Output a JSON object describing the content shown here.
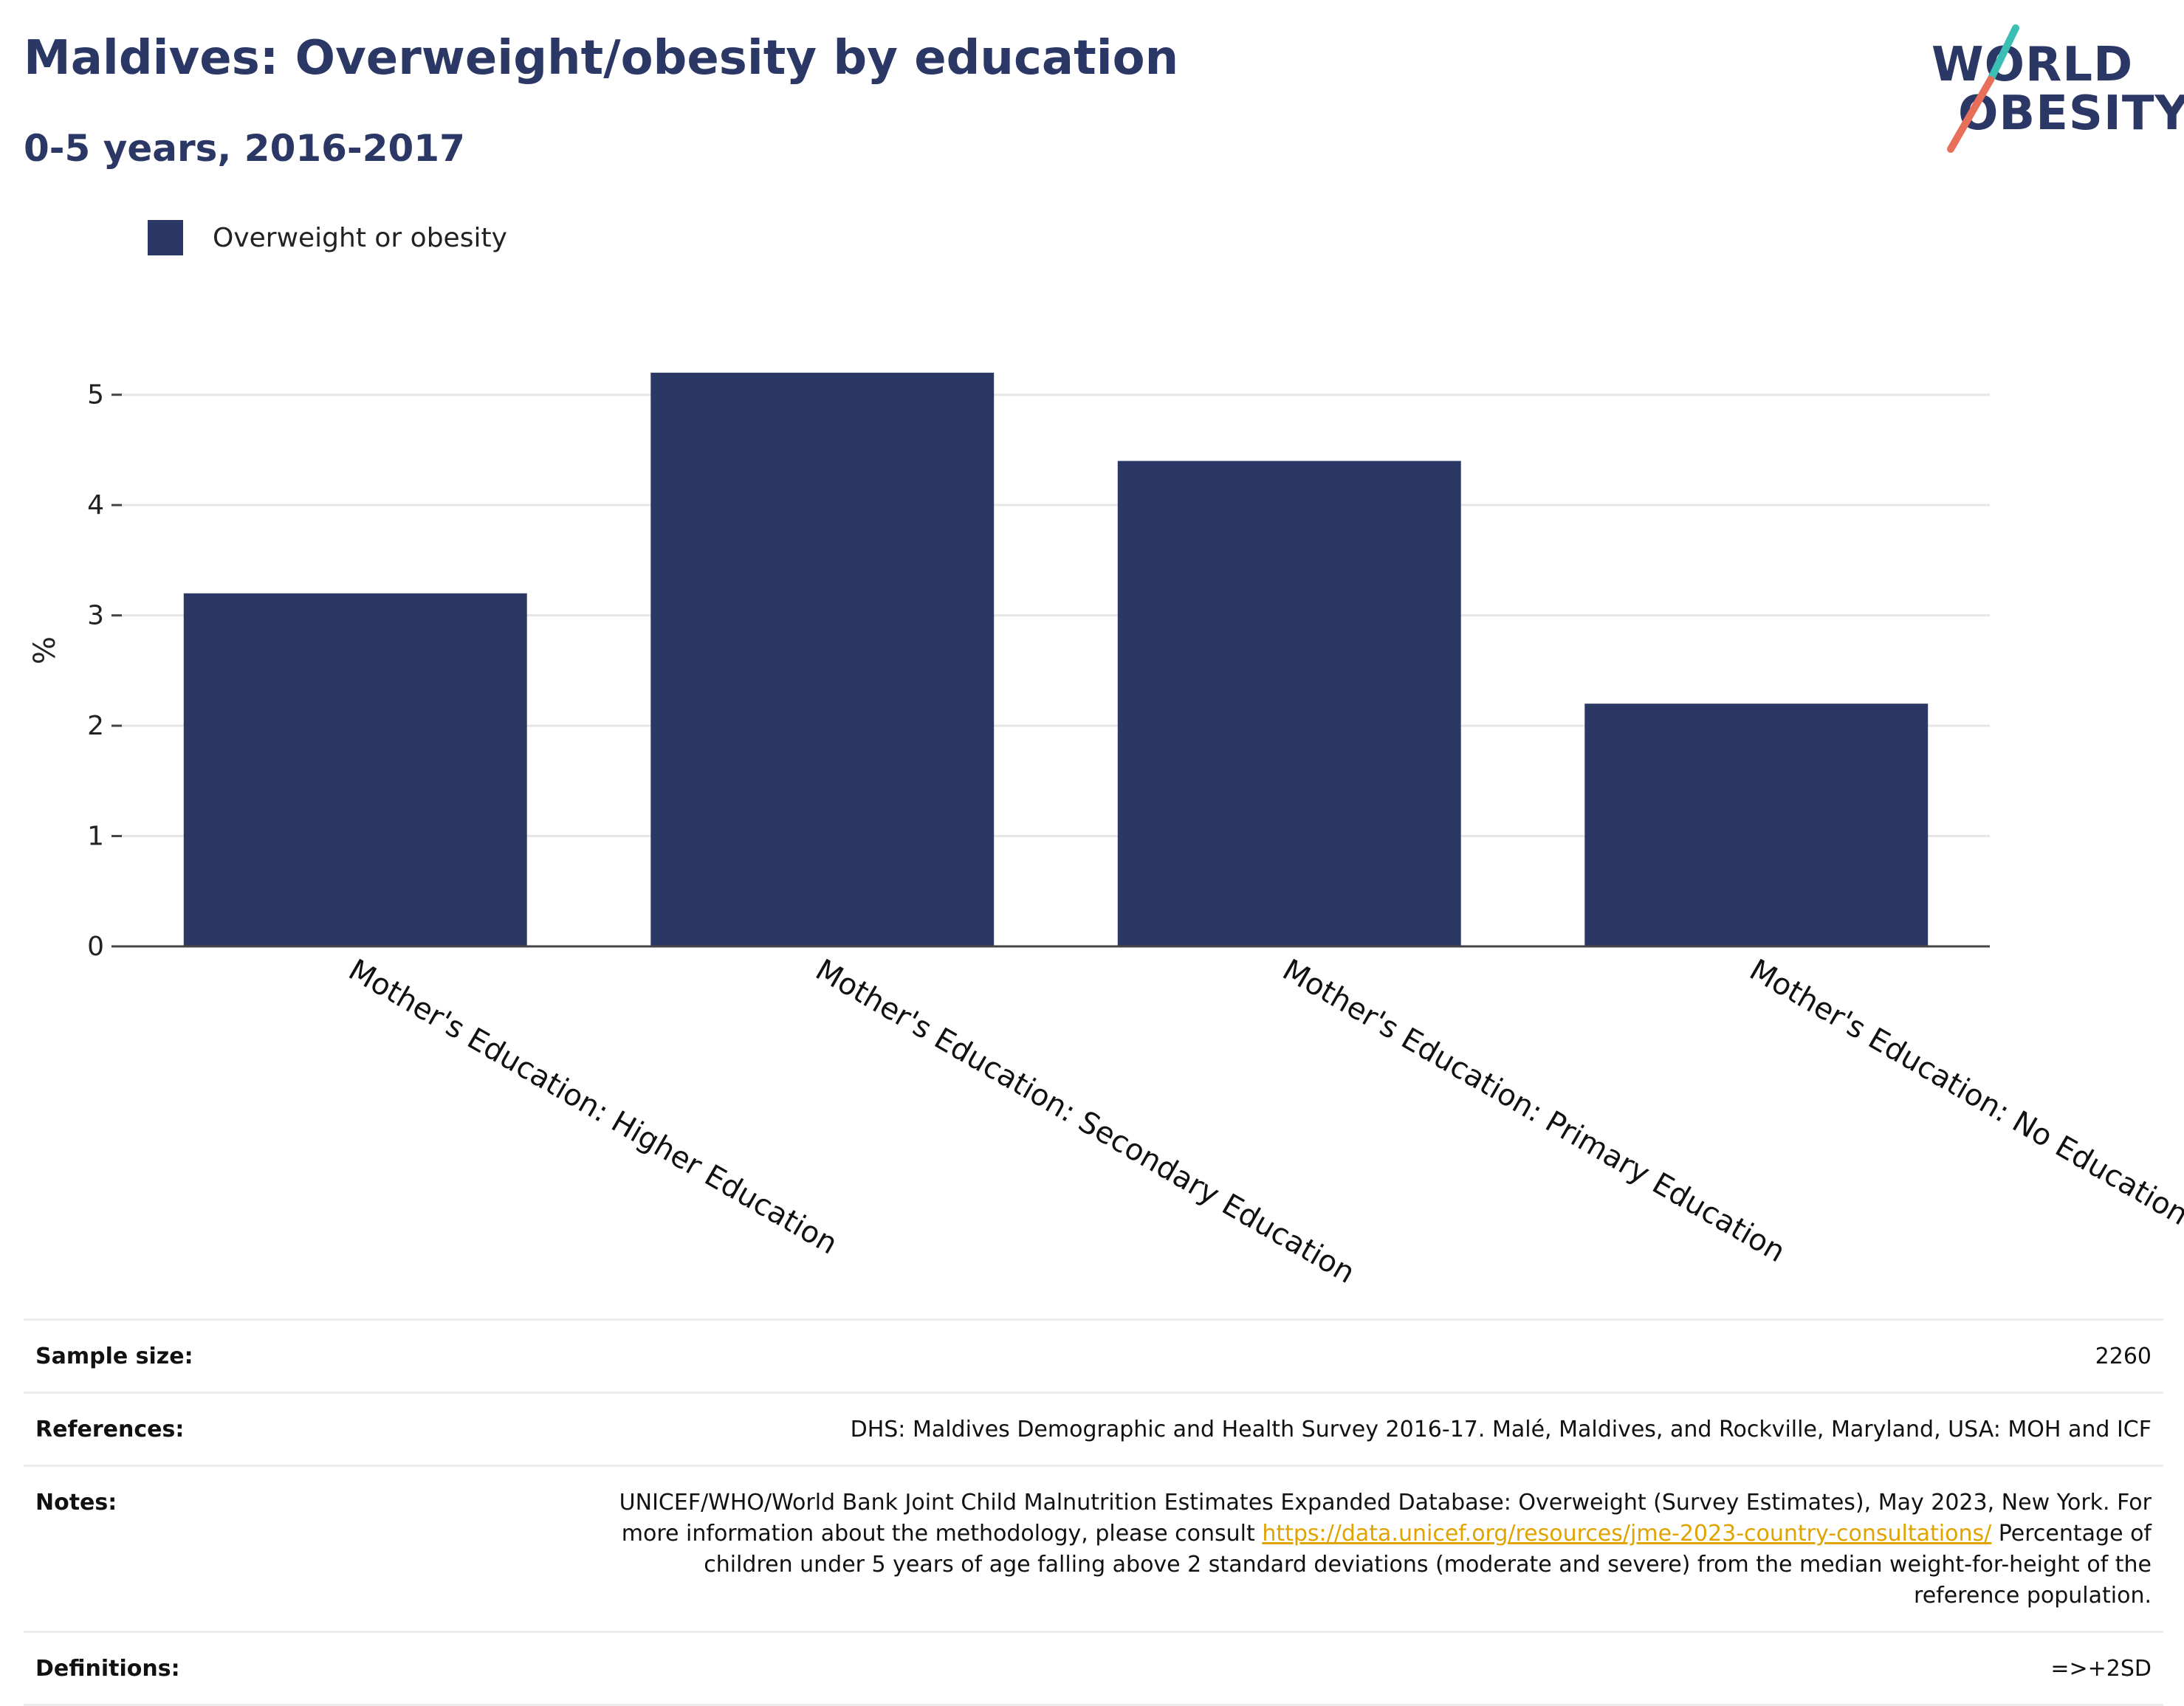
{
  "header": {
    "title": "Maldives: Overweight/obesity by education",
    "subtitle": "0-5 years, 2016-2017"
  },
  "logo": {
    "line1": "WORLD",
    "line2": "OBESITY",
    "colors": {
      "text": "#2b3764",
      "slash_top": "#3bbfb5",
      "slash_bottom": "#e8705a"
    }
  },
  "legend": {
    "label": "Overweight or obesity",
    "color": "#2b3764"
  },
  "chart_data": {
    "type": "bar",
    "categories": [
      "Mother's Education: Higher Education",
      "Mother's Education: Secondary Education",
      "Mother's Education: Primary Education",
      "Mother's Education: No Education"
    ],
    "series": [
      {
        "name": "Overweight or obesity",
        "values": [
          3.2,
          5.2,
          4.4,
          2.2
        ],
        "color": "#2b3764"
      }
    ],
    "ylabel": "%",
    "ylim": [
      0,
      5.5
    ],
    "yticks": [
      0,
      1,
      2,
      3,
      4,
      5
    ],
    "grid": true,
    "legend_position": "top-left"
  },
  "info": {
    "sample_size": {
      "label": "Sample size:",
      "value": "2260"
    },
    "references": {
      "label": "References:",
      "value": "DHS: Maldives Demographic and Health Survey 2016-17. Malé, Maldives, and Rockville, Maryland, USA: MOH and ICF"
    },
    "notes": {
      "label": "Notes:",
      "text_before_link": "UNICEF/WHO/World Bank Joint Child Malnutrition Estimates Expanded Database: Overweight (Survey Estimates), May 2023, New York. For more information about the methodology, please consult ",
      "link_text": "https://data.unicef.org/resources/jme-2023-country-consultations/",
      "text_after_link": " Percentage of children under 5 years of age falling above 2 standard deviations (moderate and severe) from the median weight-for-height of the reference population."
    },
    "definitions": {
      "label": "Definitions:",
      "value": "=>+2SD"
    }
  }
}
